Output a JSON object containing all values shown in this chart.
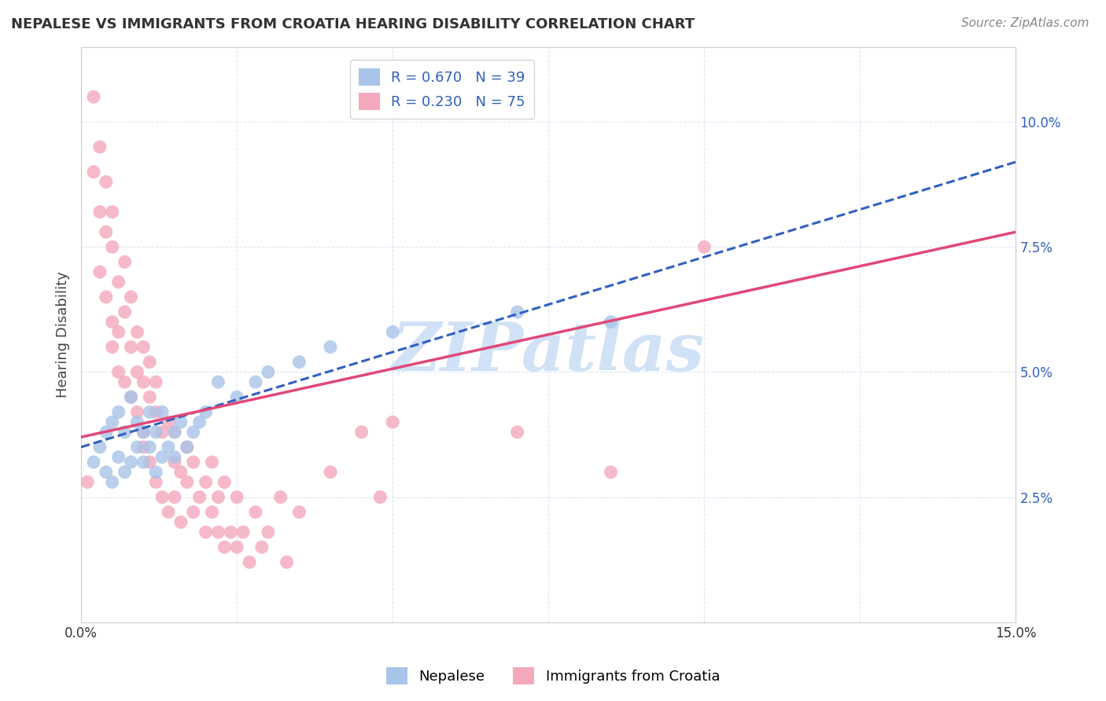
{
  "title": "NEPALESE VS IMMIGRANTS FROM CROATIA HEARING DISABILITY CORRELATION CHART",
  "source": "Source: ZipAtlas.com",
  "ylabel": "Hearing Disability",
  "xlim": [
    0.0,
    0.15
  ],
  "ylim": [
    0.0,
    0.115
  ],
  "nepalese_R": 0.67,
  "nepalese_N": 39,
  "croatia_R": 0.23,
  "croatia_N": 75,
  "nepalese_color": "#a8c4e8",
  "croatia_color": "#f4a8bc",
  "nepalese_line_color": "#3060c0",
  "croatia_line_color": "#e04878",
  "watermark_color": "#ccdff5",
  "background_color": "#ffffff",
  "grid_color": "#dce8f5",
  "nepalese_x": [
    0.002,
    0.003,
    0.004,
    0.004,
    0.005,
    0.005,
    0.006,
    0.006,
    0.007,
    0.007,
    0.008,
    0.008,
    0.009,
    0.009,
    0.01,
    0.01,
    0.011,
    0.011,
    0.012,
    0.012,
    0.013,
    0.013,
    0.014,
    0.015,
    0.015,
    0.016,
    0.017,
    0.018,
    0.019,
    0.02,
    0.022,
    0.025,
    0.028,
    0.03,
    0.035,
    0.04,
    0.05,
    0.07,
    0.085
  ],
  "nepalese_y": [
    0.032,
    0.035,
    0.03,
    0.038,
    0.028,
    0.04,
    0.033,
    0.042,
    0.03,
    0.038,
    0.032,
    0.045,
    0.035,
    0.04,
    0.032,
    0.038,
    0.035,
    0.042,
    0.03,
    0.038,
    0.033,
    0.042,
    0.035,
    0.038,
    0.033,
    0.04,
    0.035,
    0.038,
    0.04,
    0.042,
    0.048,
    0.045,
    0.048,
    0.05,
    0.052,
    0.055,
    0.058,
    0.062,
    0.06
  ],
  "croatia_x": [
    0.001,
    0.002,
    0.002,
    0.003,
    0.003,
    0.003,
    0.004,
    0.004,
    0.004,
    0.005,
    0.005,
    0.005,
    0.005,
    0.006,
    0.006,
    0.006,
    0.007,
    0.007,
    0.007,
    0.008,
    0.008,
    0.008,
    0.009,
    0.009,
    0.009,
    0.01,
    0.01,
    0.01,
    0.01,
    0.011,
    0.011,
    0.011,
    0.012,
    0.012,
    0.012,
    0.013,
    0.013,
    0.014,
    0.014,
    0.015,
    0.015,
    0.015,
    0.016,
    0.016,
    0.017,
    0.017,
    0.018,
    0.018,
    0.019,
    0.02,
    0.02,
    0.021,
    0.021,
    0.022,
    0.022,
    0.023,
    0.023,
    0.024,
    0.025,
    0.025,
    0.026,
    0.027,
    0.028,
    0.029,
    0.03,
    0.032,
    0.033,
    0.035,
    0.04,
    0.045,
    0.048,
    0.05,
    0.07,
    0.085,
    0.1
  ],
  "croatia_y": [
    0.028,
    0.09,
    0.105,
    0.082,
    0.095,
    0.07,
    0.078,
    0.065,
    0.088,
    0.06,
    0.075,
    0.055,
    0.082,
    0.058,
    0.068,
    0.05,
    0.062,
    0.048,
    0.072,
    0.055,
    0.045,
    0.065,
    0.05,
    0.042,
    0.058,
    0.048,
    0.038,
    0.055,
    0.035,
    0.045,
    0.032,
    0.052,
    0.042,
    0.028,
    0.048,
    0.038,
    0.025,
    0.04,
    0.022,
    0.032,
    0.025,
    0.038,
    0.03,
    0.02,
    0.028,
    0.035,
    0.022,
    0.032,
    0.025,
    0.018,
    0.028,
    0.022,
    0.032,
    0.018,
    0.025,
    0.015,
    0.028,
    0.018,
    0.015,
    0.025,
    0.018,
    0.012,
    0.022,
    0.015,
    0.018,
    0.025,
    0.012,
    0.022,
    0.03,
    0.038,
    0.025,
    0.04,
    0.038,
    0.03,
    0.075
  ],
  "nep_line_x0": 0.0,
  "nep_line_y0": 0.035,
  "nep_line_x1": 0.15,
  "nep_line_y1": 0.092,
  "cro_line_x0": 0.0,
  "cro_line_y0": 0.037,
  "cro_line_x1": 0.15,
  "cro_line_y1": 0.078
}
